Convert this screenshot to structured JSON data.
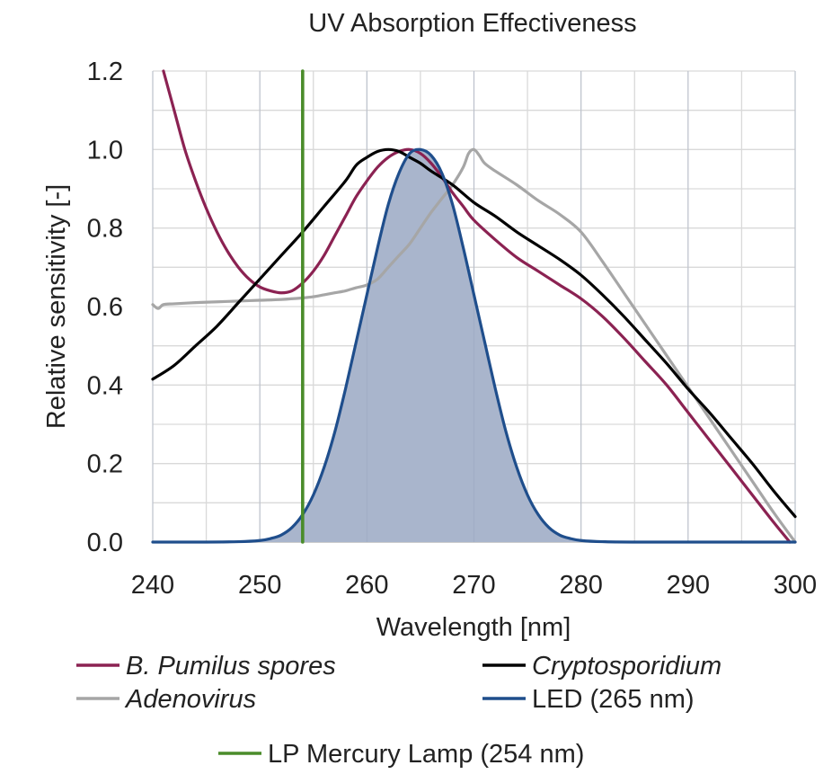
{
  "chart_data": {
    "type": "line",
    "title": "UV Absorption Effectiveness",
    "xlabel": "Wavelength [nm]",
    "ylabel": "Relative sensitivity [-]",
    "xlim": [
      240,
      300
    ],
    "ylim": [
      0,
      1.2
    ],
    "x_ticks": [
      240,
      250,
      260,
      270,
      280,
      290,
      300
    ],
    "x_tick_labels": [
      "240",
      "250",
      "260",
      "270",
      "280",
      "290",
      "300"
    ],
    "y_ticks": [
      0,
      0.2,
      0.4,
      0.6,
      0.8,
      1.0,
      1.2
    ],
    "y_tick_labels": [
      "0.0",
      "0.2",
      "0.4",
      "0.6",
      "0.8",
      "1.0",
      "1.2"
    ],
    "grid": true,
    "legend_position": "bottom",
    "series": [
      {
        "name": "B. Pumilus spores",
        "italic": true,
        "color": "#8b2252",
        "x": [
          241,
          242,
          243,
          244,
          245,
          246,
          247,
          248,
          249,
          250,
          251,
          252,
          253,
          254,
          255,
          256,
          257,
          258,
          259,
          260,
          261,
          262,
          263,
          264,
          265,
          266,
          267,
          268,
          269,
          270,
          272,
          274,
          276,
          278,
          280,
          282,
          284,
          286,
          288,
          290,
          292,
          294,
          296,
          298,
          299.5
        ],
        "y": [
          1.2,
          1.1,
          1.0,
          0.92,
          0.85,
          0.79,
          0.74,
          0.7,
          0.67,
          0.65,
          0.64,
          0.635,
          0.64,
          0.66,
          0.69,
          0.73,
          0.78,
          0.83,
          0.88,
          0.92,
          0.955,
          0.98,
          0.995,
          1.0,
          0.99,
          0.965,
          0.93,
          0.89,
          0.855,
          0.82,
          0.77,
          0.725,
          0.69,
          0.655,
          0.62,
          0.575,
          0.52,
          0.46,
          0.4,
          0.33,
          0.26,
          0.19,
          0.12,
          0.05,
          0.0
        ]
      },
      {
        "name": "Cryptosporidium",
        "italic": true,
        "color": "#000000",
        "x": [
          240,
          242,
          244,
          246,
          248,
          250,
          252,
          254,
          256,
          258,
          259,
          260,
          261,
          262,
          263,
          264,
          265,
          266,
          268,
          270,
          272,
          274,
          276,
          278,
          280,
          282,
          284,
          286,
          288,
          290,
          292,
          294,
          296,
          298,
          300
        ],
        "y": [
          0.415,
          0.45,
          0.5,
          0.55,
          0.61,
          0.67,
          0.73,
          0.79,
          0.855,
          0.92,
          0.96,
          0.98,
          0.995,
          1.0,
          0.995,
          0.98,
          0.965,
          0.945,
          0.91,
          0.865,
          0.83,
          0.79,
          0.755,
          0.72,
          0.68,
          0.63,
          0.575,
          0.515,
          0.455,
          0.39,
          0.33,
          0.265,
          0.2,
          0.13,
          0.065
        ]
      },
      {
        "name": "Adenovirus",
        "italic": true,
        "color": "#a6a6a6",
        "x": [
          240,
          240.5,
          241,
          242,
          244,
          246,
          248,
          250,
          252,
          254,
          255,
          256,
          257,
          258,
          259,
          260,
          261,
          262,
          263,
          264,
          265,
          266,
          267,
          268,
          269,
          269.5,
          270,
          270.5,
          271,
          272,
          274,
          276,
          278,
          280,
          282,
          284,
          286,
          288,
          290,
          292,
          294,
          296,
          298,
          300
        ],
        "y": [
          0.605,
          0.595,
          0.605,
          0.607,
          0.61,
          0.612,
          0.614,
          0.616,
          0.618,
          0.622,
          0.625,
          0.63,
          0.635,
          0.64,
          0.648,
          0.655,
          0.67,
          0.7,
          0.73,
          0.76,
          0.8,
          0.84,
          0.875,
          0.91,
          0.955,
          0.99,
          1.0,
          0.985,
          0.965,
          0.945,
          0.91,
          0.87,
          0.835,
          0.79,
          0.715,
          0.635,
          0.555,
          0.475,
          0.395,
          0.315,
          0.235,
          0.155,
          0.075,
          0.0
        ]
      },
      {
        "name": "LED (265 nm)",
        "italic": false,
        "color": "#1f4e8c",
        "fill": "#a9b5cc",
        "x": [
          240,
          244,
          248,
          250,
          251,
          252,
          253,
          254,
          255,
          256,
          257,
          258,
          259,
          260,
          261,
          262,
          263,
          264,
          265,
          266,
          267,
          268,
          269,
          270,
          271,
          272,
          273,
          274,
          275,
          276,
          277,
          278,
          279,
          280,
          282,
          286,
          300
        ],
        "y": [
          0.0,
          0.0,
          0.001,
          0.004,
          0.009,
          0.018,
          0.037,
          0.07,
          0.12,
          0.19,
          0.28,
          0.39,
          0.51,
          0.63,
          0.75,
          0.86,
          0.94,
          0.99,
          1.0,
          0.985,
          0.94,
          0.86,
          0.75,
          0.63,
          0.51,
          0.39,
          0.28,
          0.19,
          0.12,
          0.07,
          0.037,
          0.018,
          0.009,
          0.004,
          0.001,
          0.0,
          0.0
        ]
      },
      {
        "name": "LP Mercury Lamp (254 nm)",
        "italic": false,
        "color": "#4a8c2a",
        "x": [
          254,
          254
        ],
        "y": [
          0,
          1.2
        ]
      }
    ]
  }
}
